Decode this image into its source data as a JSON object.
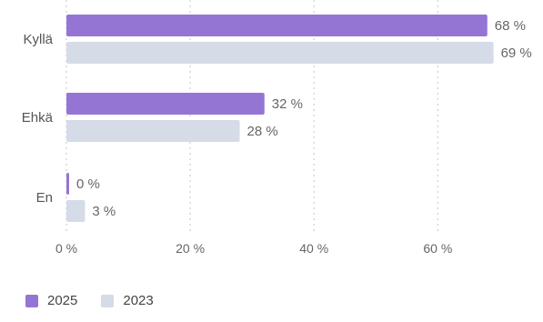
{
  "chart_data": {
    "type": "bar",
    "orientation": "horizontal",
    "categories": [
      "Kyllä",
      "Ehkä",
      "En"
    ],
    "series": [
      {
        "name": "2025",
        "color": "#9575d4",
        "values": [
          68,
          32,
          0
        ],
        "labels": [
          "68 %",
          "32 %",
          "0 %"
        ]
      },
      {
        "name": "2023",
        "color": "#d6dbe8",
        "values": [
          69,
          28,
          3
        ],
        "labels": [
          "69 %",
          "28 %",
          "3 %"
        ]
      }
    ],
    "xlim": [
      0,
      72
    ],
    "xticks": [
      0,
      20,
      40,
      60
    ],
    "xtick_labels": [
      "0 %",
      "20 %",
      "40 %",
      "60 %"
    ],
    "grid": "vertical-dotted",
    "legend": "bottom-left"
  }
}
